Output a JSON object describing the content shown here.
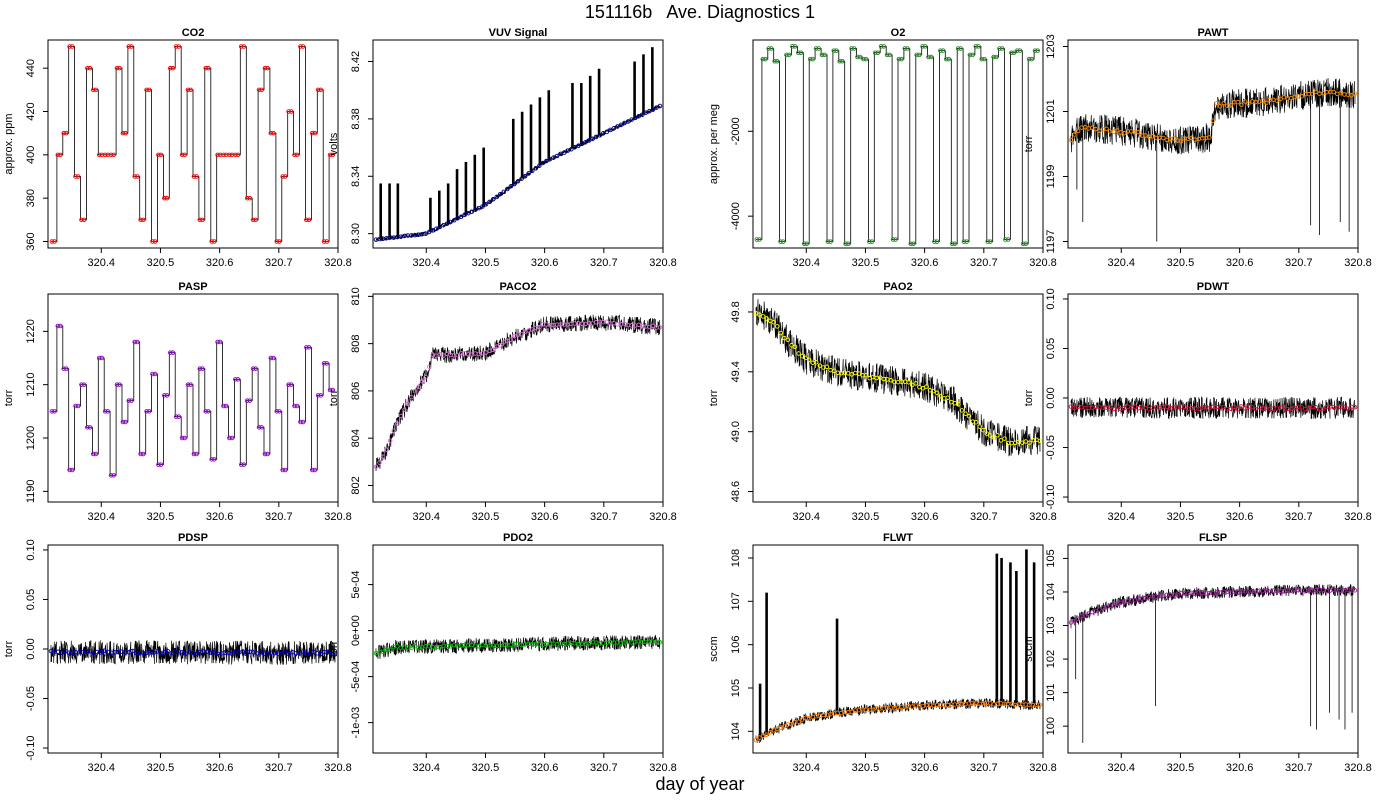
{
  "page": {
    "title": "151116b   Ave. Diagnostics 1",
    "x_label": "day of year"
  },
  "chart_data": [
    {
      "type": "line",
      "title": "CO2",
      "ylabel": "approx. ppm",
      "xlim": [
        320.31,
        320.8
      ],
      "ylim": [
        357,
        453
      ],
      "xticks": [
        320.4,
        320.5,
        320.6,
        320.7,
        320.8
      ],
      "xtick_labels": [
        "320.4",
        "320.5",
        "320.6",
        "320.7",
        "320.8"
      ],
      "yticks": [
        360,
        380,
        400,
        420,
        440
      ],
      "ytick_labels": [
        "360",
        "380",
        "400",
        "420",
        "440"
      ],
      "marker_color": "#ff0000",
      "noise": 0,
      "series": {
        "type": "step",
        "levels": [
          360,
          400,
          410,
          450,
          390,
          370,
          440,
          430,
          400,
          400,
          400,
          440,
          410,
          450,
          390,
          370,
          430,
          360,
          400,
          380,
          440,
          450,
          400,
          430,
          390,
          370,
          440,
          360,
          400,
          400,
          400,
          400,
          450,
          380,
          370,
          430,
          440,
          410,
          360,
          390,
          420,
          400,
          450,
          370,
          410,
          430,
          360,
          400
        ],
        "start": 320.315,
        "end": 320.795
      }
    },
    {
      "type": "line",
      "title": "VUV Signal",
      "ylabel": "volts",
      "xlim": [
        320.31,
        320.8
      ],
      "ylim": [
        8.29,
        8.435
      ],
      "xticks": [
        320.4,
        320.5,
        320.6,
        320.7,
        320.8
      ],
      "xtick_labels": [
        "320.4",
        "320.5",
        "320.6",
        "320.7",
        "320.8"
      ],
      "yticks": [
        8.3,
        8.34,
        8.38,
        8.42
      ],
      "ytick_labels": [
        "8.30",
        "8.34",
        "8.38",
        "8.42"
      ],
      "marker_color": "#00008b",
      "noise": 0.0015,
      "series": {
        "type": "trend",
        "x": [
          320.315,
          320.4,
          320.5,
          320.6,
          320.7,
          320.795
        ],
        "y": [
          8.296,
          8.3,
          8.32,
          8.35,
          8.37,
          8.389
        ]
      },
      "spikes": {
        "x": [
          320.323,
          320.338,
          320.352,
          320.407,
          320.422,
          320.437,
          320.452,
          320.467,
          320.482,
          320.497,
          320.547,
          320.562,
          320.577,
          320.592,
          320.607,
          320.647,
          320.662,
          320.677,
          320.692,
          320.752,
          320.767,
          320.782
        ],
        "top": [
          8.335,
          8.335,
          8.335,
          8.325,
          8.33,
          8.335,
          8.345,
          8.35,
          8.355,
          8.36,
          8.38,
          8.385,
          8.39,
          8.395,
          8.4,
          8.405,
          8.405,
          8.41,
          8.415,
          8.42,
          8.425,
          8.43
        ]
      }
    },
    {
      "type": "line",
      "title": "O2",
      "ylabel": "approx. per meg",
      "xlim": [
        320.31,
        320.8
      ],
      "ylim": [
        -4750,
        150
      ],
      "xticks": [
        320.4,
        320.5,
        320.6,
        320.7,
        320.8
      ],
      "xtick_labels": [
        "320.4",
        "320.5",
        "320.6",
        "320.7",
        "320.8"
      ],
      "yticks": [
        -4000,
        -2000
      ],
      "ytick_labels": [
        "-4000",
        "-2000"
      ],
      "marker_color": "#228b22",
      "noise": 0,
      "series": {
        "type": "step",
        "levels": [
          -4550,
          -300,
          -50,
          -350,
          -4600,
          -200,
          0,
          -150,
          -4650,
          -300,
          -50,
          -200,
          -4600,
          -100,
          -350,
          -4650,
          -50,
          -250,
          -300,
          -4600,
          -150,
          0,
          -200,
          -4550,
          -300,
          -50,
          -4650,
          -200,
          0,
          -250,
          -4600,
          -100,
          -300,
          -4650,
          -50,
          -4600,
          -200,
          0,
          -300,
          -4600,
          -250,
          -50,
          -4550,
          -150,
          -100,
          -4650,
          -300,
          -100
        ],
        "start": 320.315,
        "end": 320.795
      }
    },
    {
      "type": "line",
      "title": "PAWT",
      "ylabel": "torr",
      "xlim": [
        320.31,
        320.8
      ],
      "ylim": [
        1196.8,
        1203.2
      ],
      "xticks": [
        320.4,
        320.5,
        320.6,
        320.7,
        320.8
      ],
      "xtick_labels": [
        "320.4",
        "320.5",
        "320.6",
        "320.7",
        "320.8"
      ],
      "yticks": [
        1197,
        1199,
        1201,
        1203
      ],
      "ytick_labels": [
        "1197",
        "1199",
        "1201",
        "1203"
      ],
      "marker_color": "#ff8c00",
      "noise": 0.45,
      "series": {
        "type": "trend",
        "x": [
          320.315,
          320.33,
          320.4,
          320.5,
          320.55,
          320.56,
          320.65,
          320.7,
          320.75,
          320.795
        ],
        "y": [
          1200.1,
          1200.5,
          1200.4,
          1200.1,
          1200.2,
          1201.2,
          1201.3,
          1201.5,
          1201.6,
          1201.5
        ]
      },
      "dips": [
        [
          320.325,
          1198.6
        ],
        [
          320.335,
          1197.6
        ],
        [
          320.46,
          1197.0
        ],
        [
          320.72,
          1197.5
        ],
        [
          320.735,
          1197.2
        ],
        [
          320.77,
          1197.6
        ],
        [
          320.785,
          1197.3
        ]
      ]
    },
    {
      "type": "line",
      "title": "PASP",
      "ylabel": "torr",
      "xlim": [
        320.31,
        320.8
      ],
      "ylim": [
        1188,
        1227
      ],
      "xticks": [
        320.4,
        320.5,
        320.6,
        320.7,
        320.8
      ],
      "xtick_labels": [
        "320.4",
        "320.5",
        "320.6",
        "320.7",
        "320.8"
      ],
      "yticks": [
        1190,
        1200,
        1210,
        1220
      ],
      "ytick_labels": [
        "1190",
        "1200",
        "1210",
        "1220"
      ],
      "marker_color": "#9400d3",
      "noise": 0,
      "series": {
        "type": "step",
        "levels": [
          1205,
          1221,
          1213,
          1194,
          1206,
          1210,
          1202,
          1197,
          1215,
          1205,
          1193,
          1210,
          1203,
          1207,
          1218,
          1197,
          1205,
          1212,
          1195,
          1208,
          1216,
          1204,
          1200,
          1210,
          1197,
          1213,
          1205,
          1196,
          1218,
          1206,
          1200,
          1211,
          1195,
          1207,
          1213,
          1202,
          1197,
          1215,
          1205,
          1194,
          1210,
          1206,
          1203,
          1217,
          1194,
          1208,
          1214,
          1209
        ],
        "start": 320.315,
        "end": 320.795
      }
    },
    {
      "type": "line",
      "title": "PACO2",
      "ylabel": "torr",
      "xlim": [
        320.31,
        320.8
      ],
      "ylim": [
        801.3,
        810.1
      ],
      "xticks": [
        320.4,
        320.5,
        320.6,
        320.7,
        320.8
      ],
      "xtick_labels": [
        "320.4",
        "320.5",
        "320.6",
        "320.7",
        "320.8"
      ],
      "yticks": [
        802,
        804,
        806,
        808,
        810
      ],
      "ytick_labels": [
        "802",
        "804",
        "806",
        "808",
        "810"
      ],
      "marker_color": "#da70d6",
      "noise": 0.35,
      "series": {
        "type": "trend",
        "x": [
          320.315,
          320.33,
          320.35,
          320.38,
          320.4,
          320.41,
          320.5,
          320.55,
          320.6,
          320.7,
          320.795
        ],
        "y": [
          802.8,
          803.3,
          804.6,
          806.0,
          806.6,
          807.5,
          807.6,
          808.3,
          808.8,
          808.9,
          808.7
        ]
      }
    },
    {
      "type": "line",
      "title": "PAO2",
      "ylabel": "torr",
      "xlim": [
        320.31,
        320.8
      ],
      "ylim": [
        48.53,
        49.92
      ],
      "xticks": [
        320.4,
        320.5,
        320.6,
        320.7,
        320.8
      ],
      "xtick_labels": [
        "320.4",
        "320.5",
        "320.6",
        "320.7",
        "320.8"
      ],
      "yticks": [
        48.6,
        49.0,
        49.4,
        49.8
      ],
      "ytick_labels": [
        "48.6",
        "49.0",
        "49.4",
        "49.8"
      ],
      "marker_color": "#ffff00",
      "noise": 0.1,
      "series": {
        "type": "trend",
        "x": [
          320.315,
          320.34,
          320.37,
          320.4,
          320.45,
          320.5,
          320.55,
          320.6,
          320.65,
          320.7,
          320.75,
          320.795
        ],
        "y": [
          49.8,
          49.75,
          49.6,
          49.48,
          49.4,
          49.37,
          49.34,
          49.3,
          49.2,
          49.0,
          48.92,
          48.95
        ]
      }
    },
    {
      "type": "line",
      "title": "PDWT",
      "ylabel": "torr",
      "xlim": [
        320.31,
        320.8
      ],
      "ylim": [
        -0.105,
        0.105
      ],
      "xticks": [
        320.4,
        320.5,
        320.6,
        320.7,
        320.8
      ],
      "xtick_labels": [
        "320.4",
        "320.5",
        "320.6",
        "320.7",
        "320.8"
      ],
      "yticks": [
        -0.1,
        -0.05,
        0.0,
        0.05,
        0.1
      ],
      "ytick_labels": [
        "-0.10",
        "-0.05",
        "0.00",
        "0.05",
        "0.10"
      ],
      "marker_color": "#dc143c",
      "noise": 0.011,
      "series": {
        "type": "trend",
        "x": [
          320.315,
          320.795
        ],
        "y": [
          -0.01,
          -0.01
        ]
      }
    },
    {
      "type": "line",
      "title": "PDSP",
      "ylabel": "torr",
      "xlim": [
        320.31,
        320.8
      ],
      "ylim": [
        -0.105,
        0.105
      ],
      "xticks": [
        320.4,
        320.5,
        320.6,
        320.7,
        320.8
      ],
      "xtick_labels": [
        "320.4",
        "320.5",
        "320.6",
        "320.7",
        "320.8"
      ],
      "yticks": [
        -0.1,
        -0.05,
        0.0,
        0.05,
        0.1
      ],
      "ytick_labels": [
        "-0.10",
        "-0.05",
        "0.00",
        "0.05",
        "0.10"
      ],
      "marker_color": "#0000cd",
      "noise": 0.012,
      "series": {
        "type": "trend",
        "x": [
          320.315,
          320.795
        ],
        "y": [
          -0.003,
          -0.004
        ]
      }
    },
    {
      "type": "line",
      "title": "PDO2",
      "ylabel": "torr",
      "xlim": [
        320.31,
        320.8
      ],
      "ylim": [
        -0.00133,
        0.00093
      ],
      "xticks": [
        320.4,
        320.5,
        320.6,
        320.7,
        320.8
      ],
      "xtick_labels": [
        "320.4",
        "320.5",
        "320.6",
        "320.7",
        "320.8"
      ],
      "yticks": [
        -0.001,
        -0.0005,
        0,
        0.0005
      ],
      "ytick_labels": [
        "-1e-03",
        "-5e-04",
        "0e+00",
        "5e-04"
      ],
      "marker_color": "#00c000",
      "noise": 8e-05,
      "series": {
        "type": "trend",
        "x": [
          320.315,
          320.35,
          320.5,
          320.795
        ],
        "y": [
          -0.00025,
          -0.00018,
          -0.00016,
          -0.00012
        ]
      }
    },
    {
      "type": "line",
      "title": "FLWT",
      "ylabel": "sccm",
      "xlim": [
        320.31,
        320.8
      ],
      "ylim": [
        103.5,
        108.3
      ],
      "xticks": [
        320.4,
        320.5,
        320.6,
        320.7,
        320.8
      ],
      "xtick_labels": [
        "320.4",
        "320.5",
        "320.6",
        "320.7",
        "320.8"
      ],
      "yticks": [
        104,
        105,
        106,
        107,
        108
      ],
      "ytick_labels": [
        "104",
        "105",
        "106",
        "107",
        "108"
      ],
      "marker_color": "#ff7f00",
      "noise": 0.12,
      "series": {
        "type": "trend",
        "x": [
          320.315,
          320.35,
          320.4,
          320.45,
          320.5,
          320.6,
          320.7,
          320.795
        ],
        "y": [
          103.8,
          104.05,
          104.3,
          104.42,
          104.5,
          104.6,
          104.65,
          104.6
        ]
      },
      "spikes": {
        "x": [
          320.322,
          320.333,
          320.452,
          320.722,
          320.73,
          320.745,
          320.755,
          320.772,
          320.785
        ],
        "top": [
          105.1,
          107.2,
          106.6,
          108.1,
          108.0,
          107.9,
          107.7,
          108.2,
          107.9
        ]
      }
    },
    {
      "type": "line",
      "title": "FLSP",
      "ylabel": "sccm",
      "xlim": [
        320.31,
        320.8
      ],
      "ylim": [
        99.2,
        105.4
      ],
      "xticks": [
        320.4,
        320.5,
        320.6,
        320.7,
        320.8
      ],
      "xtick_labels": [
        "320.4",
        "320.5",
        "320.6",
        "320.7",
        "320.8"
      ],
      "yticks": [
        100,
        101,
        102,
        103,
        104,
        105
      ],
      "ytick_labels": [
        "100",
        "101",
        "102",
        "103",
        "104",
        "105"
      ],
      "marker_color": "#a020a0",
      "noise": 0.18,
      "series": {
        "type": "trend",
        "x": [
          320.315,
          320.35,
          320.4,
          320.45,
          320.5,
          320.6,
          320.7,
          320.795
        ],
        "y": [
          103.1,
          103.4,
          103.7,
          103.85,
          103.95,
          104.0,
          104.05,
          104.05
        ]
      },
      "dips": [
        [
          320.323,
          101.4
        ],
        [
          320.335,
          99.5
        ],
        [
          320.458,
          100.6
        ],
        [
          320.72,
          100.0
        ],
        [
          320.73,
          99.9
        ],
        [
          320.752,
          100.4
        ],
        [
          320.768,
          100.2
        ],
        [
          320.778,
          99.9
        ],
        [
          320.79,
          100.4
        ]
      ]
    }
  ]
}
